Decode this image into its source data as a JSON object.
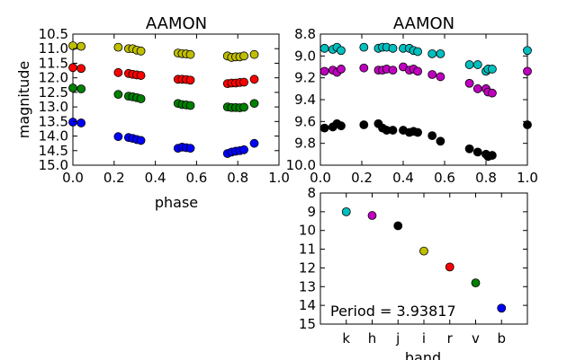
{
  "colors": {
    "k": "#00bfbf",
    "h": "#bf00bf",
    "j": "#000000",
    "i": "#bfbf00",
    "r": "#ff0000",
    "v": "#008000",
    "b": "#0000ff"
  },
  "chart_data": [
    {
      "id": "left",
      "type": "scatter",
      "title": "AAMON",
      "xlabel": "phase",
      "ylabel": "magnitude",
      "xlim": [
        0.0,
        1.0
      ],
      "ylim": [
        15.0,
        10.5
      ],
      "xticks": [
        "0.0",
        "0.2",
        "0.4",
        "0.6",
        "0.8",
        "1.0"
      ],
      "yticks": [
        "10.5",
        "11.0",
        "11.5",
        "12.0",
        "12.5",
        "13.0",
        "13.5",
        "14.0",
        "14.5",
        "15.0"
      ],
      "phases": [
        0.0,
        0.04,
        0.22,
        0.27,
        0.29,
        0.31,
        0.33,
        0.51,
        0.53,
        0.55,
        0.57,
        0.75,
        0.77,
        0.79,
        0.81,
        0.83,
        0.88
      ],
      "series": [
        {
          "band": "i",
          "color": "#bfbf00",
          "values": [
            10.9,
            10.92,
            10.95,
            11.0,
            11.0,
            11.05,
            11.08,
            11.15,
            11.17,
            11.18,
            11.2,
            11.25,
            11.3,
            11.28,
            11.28,
            11.25,
            11.2
          ]
        },
        {
          "band": "r",
          "color": "#ff0000",
          "values": [
            11.65,
            11.68,
            11.82,
            11.85,
            11.88,
            11.9,
            11.92,
            12.05,
            12.05,
            12.06,
            12.08,
            12.2,
            12.18,
            12.18,
            12.16,
            12.15,
            12.05
          ]
        },
        {
          "band": "v",
          "color": "#008000",
          "values": [
            12.35,
            12.38,
            12.57,
            12.63,
            12.65,
            12.68,
            12.72,
            12.88,
            12.92,
            12.93,
            12.95,
            13.0,
            13.02,
            13.02,
            13.03,
            13.01,
            12.88
          ]
        },
        {
          "band": "b",
          "color": "#0000ff",
          "values": [
            13.52,
            13.55,
            14.02,
            14.05,
            14.08,
            14.12,
            14.15,
            14.42,
            14.38,
            14.4,
            14.42,
            14.6,
            14.55,
            14.52,
            14.5,
            14.47,
            14.25
          ]
        }
      ]
    },
    {
      "id": "right-top",
      "type": "scatter",
      "title": "AAMON",
      "xlabel": "",
      "ylabel": "",
      "xlim": [
        0.0,
        1.0
      ],
      "ylim": [
        10.0,
        8.8
      ],
      "xticks": [
        "0.0",
        "0.2",
        "0.4",
        "0.6",
        "0.8",
        "1.0"
      ],
      "yticks": [
        "8.8",
        "9.0",
        "9.2",
        "9.4",
        "9.6",
        "9.8",
        "10.0"
      ],
      "phases": [
        0.02,
        0.06,
        0.08,
        0.1,
        0.21,
        0.28,
        0.3,
        0.32,
        0.35,
        0.4,
        0.43,
        0.45,
        0.47,
        0.54,
        0.58,
        0.72,
        0.76,
        0.8,
        0.81,
        0.83,
        1.0
      ],
      "series": [
        {
          "band": "k",
          "color": "#00bfbf",
          "values": [
            8.93,
            8.94,
            8.92,
            8.95,
            8.92,
            8.93,
            8.92,
            8.92,
            8.93,
            8.93,
            8.93,
            8.95,
            8.96,
            8.98,
            8.98,
            9.08,
            9.08,
            9.14,
            9.12,
            9.12,
            8.95
          ]
        },
        {
          "band": "h",
          "color": "#bf00bf",
          "values": [
            9.14,
            9.13,
            9.15,
            9.12,
            9.11,
            9.13,
            9.13,
            9.12,
            9.13,
            9.1,
            9.13,
            9.12,
            9.14,
            9.17,
            9.19,
            9.25,
            9.3,
            9.3,
            9.33,
            9.34,
            9.14
          ]
        },
        {
          "band": "j",
          "color": "#000000",
          "values": [
            9.66,
            9.65,
            9.62,
            9.64,
            9.63,
            9.62,
            9.66,
            9.68,
            9.68,
            9.68,
            9.7,
            9.69,
            9.7,
            9.73,
            9.78,
            9.85,
            9.88,
            9.9,
            9.92,
            9.91,
            9.63
          ]
        }
      ]
    },
    {
      "id": "right-bottom",
      "type": "scatter",
      "title": "",
      "xlabel": "band",
      "ylabel": "",
      "ylim": [
        15,
        8
      ],
      "yticks": [
        "8",
        "9",
        "10",
        "11",
        "12",
        "13",
        "14",
        "15"
      ],
      "categories": [
        "k",
        "h",
        "j",
        "i",
        "r",
        "v",
        "b"
      ],
      "values": [
        9.0,
        9.2,
        9.75,
        11.1,
        11.95,
        12.8,
        14.15
      ],
      "annotation": "Period = 3.93817"
    }
  ]
}
